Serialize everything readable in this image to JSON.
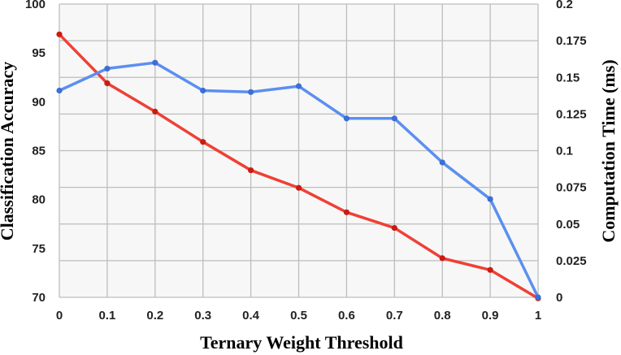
{
  "chart_data": {
    "type": "line",
    "title": "",
    "xlabel": "Ternary Weight Threshold",
    "ylabel": "Classification Accuracy",
    "y2label": "Computation Time (ms)",
    "x": [
      0,
      0.1,
      0.2,
      0.3,
      0.4,
      0.5,
      0.6,
      0.7,
      0.8,
      0.9,
      1
    ],
    "x_tick_labels": [
      "0",
      "0.1",
      "0.2",
      "0.3",
      "0.4",
      "0.5",
      "0.6",
      "0.7",
      "0.8",
      "0.9",
      "1"
    ],
    "xlim": [
      0,
      1
    ],
    "ylim": [
      70,
      100
    ],
    "y_ticks": [
      70,
      75,
      80,
      85,
      90,
      95,
      100
    ],
    "y_tick_labels": [
      "70",
      "75",
      "80",
      "85",
      "90",
      "95",
      "100"
    ],
    "y2lim": [
      0,
      0.2
    ],
    "y2_ticks": [
      0,
      0.025,
      0.05,
      0.075,
      0.1,
      0.125,
      0.15,
      0.175,
      0.2
    ],
    "y2_tick_labels": [
      "0",
      "0.025",
      "0.05",
      "0.075",
      "0.1",
      "0.125",
      "0.15",
      "0.175",
      "0.2"
    ],
    "grid": true,
    "series": [
      {
        "axis": "left",
        "color": "#ef4035",
        "values": [
          96.9,
          91.9,
          89.0,
          85.9,
          83.0,
          81.2,
          78.7,
          77.1,
          74.0,
          72.8,
          69.9
        ]
      },
      {
        "axis": "right",
        "color": "#5b8ff0",
        "values": [
          0.141,
          0.156,
          0.16,
          0.141,
          0.14,
          0.144,
          0.122,
          0.122,
          0.092,
          0.067,
          0.0
        ]
      }
    ]
  }
}
